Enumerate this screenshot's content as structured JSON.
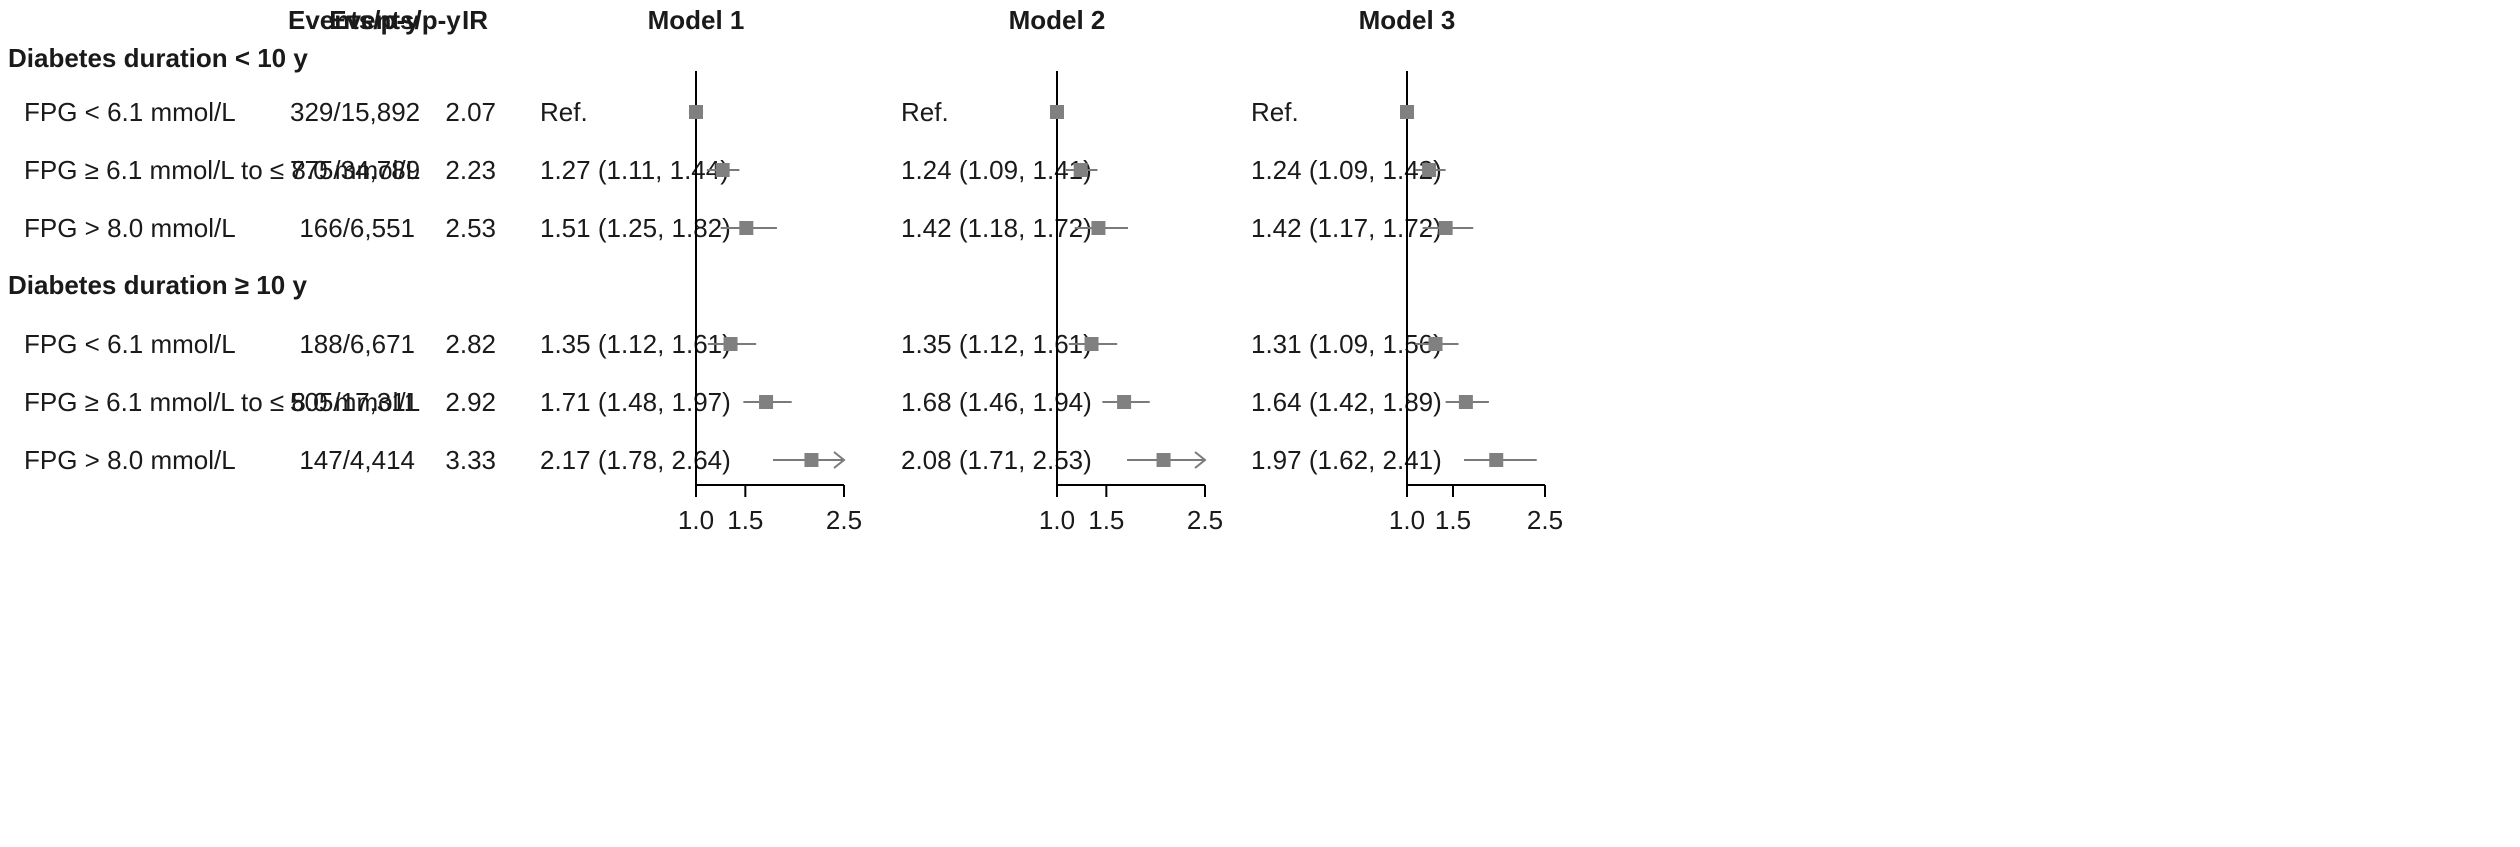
{
  "headers": {
    "events": "Events/p-y",
    "ir": "IR",
    "models": [
      "Model 1",
      "Model 2",
      "Model 3"
    ]
  },
  "groups": [
    {
      "title": "Diabetes duration < 10 y",
      "rows": [
        {
          "label": "FPG < 6.1 mmol/L",
          "events": "329/15,892",
          "ir": "2.07",
          "estimates": [
            "Ref.",
            "Ref.",
            "Ref."
          ]
        },
        {
          "label": "FPG ≥ 6.1 mmol/L to ≤ 8.0 mmol/L",
          "events": "775/34,789",
          "ir": "2.23",
          "estimates": [
            "1.27 (1.11, 1.44)",
            "1.24 (1.09, 1.41)",
            "1.24 (1.09, 1.42)"
          ]
        },
        {
          "label": "FPG > 8.0 mmol/L",
          "events": "166/6,551",
          "ir": "2.53",
          "estimates": [
            "1.51 (1.25, 1.82)",
            "1.42 (1.18, 1.72)",
            "1.42 (1.17, 1.72)"
          ]
        }
      ]
    },
    {
      "title": "Diabetes duration ≥ 10 y",
      "rows": [
        {
          "label": "FPG < 6.1 mmol/L",
          "events": "188/6,671",
          "ir": "2.82",
          "estimates": [
            "1.35 (1.12, 1.61)",
            "1.35 (1.12, 1.61)",
            "1.31 (1.09, 1.56)"
          ]
        },
        {
          "label": "FPG ≥ 6.1 mmol/L to ≤ 8.0 mmol/L",
          "events": "505/17,311",
          "ir": "2.92",
          "estimates": [
            "1.71 (1.48, 1.97)",
            "1.68 (1.46, 1.94)",
            "1.64 (1.42, 1.89)"
          ]
        },
        {
          "label": "FPG > 8.0 mmol/L",
          "events": "147/4,414",
          "ir": "3.33",
          "estimates": [
            "2.17 (1.78, 2.64)",
            "2.08 (1.71, 2.53)",
            "1.97 (1.62, 2.41)"
          ]
        }
      ]
    }
  ],
  "chart_data": {
    "type": "forest",
    "xlim": [
      1.0,
      2.5
    ],
    "xticks": [
      1.0,
      1.5,
      2.5
    ],
    "xtick_labels": [
      "1.0",
      "1.5",
      "2.5"
    ],
    "reference_line": 1.0,
    "marker_color": "#808080",
    "line_color": "#7a7a7a",
    "panels": [
      {
        "name": "Model 1",
        "points": [
          {
            "est": 1.0,
            "lo": 1.0,
            "hi": 1.0,
            "ref": true
          },
          {
            "est": 1.27,
            "lo": 1.11,
            "hi": 1.44
          },
          {
            "est": 1.51,
            "lo": 1.25,
            "hi": 1.82
          },
          {
            "est": 1.35,
            "lo": 1.12,
            "hi": 1.61
          },
          {
            "est": 1.71,
            "lo": 1.48,
            "hi": 1.97
          },
          {
            "est": 2.17,
            "lo": 1.78,
            "hi": 2.64,
            "arrow": true
          }
        ]
      },
      {
        "name": "Model 2",
        "points": [
          {
            "est": 1.0,
            "lo": 1.0,
            "hi": 1.0,
            "ref": true
          },
          {
            "est": 1.24,
            "lo": 1.09,
            "hi": 1.41
          },
          {
            "est": 1.42,
            "lo": 1.18,
            "hi": 1.72
          },
          {
            "est": 1.35,
            "lo": 1.12,
            "hi": 1.61
          },
          {
            "est": 1.68,
            "lo": 1.46,
            "hi": 1.94
          },
          {
            "est": 2.08,
            "lo": 1.71,
            "hi": 2.53,
            "arrow": true
          }
        ]
      },
      {
        "name": "Model 3",
        "points": [
          {
            "est": 1.0,
            "lo": 1.0,
            "hi": 1.0,
            "ref": true
          },
          {
            "est": 1.24,
            "lo": 1.09,
            "hi": 1.42
          },
          {
            "est": 1.42,
            "lo": 1.17,
            "hi": 1.72
          },
          {
            "est": 1.31,
            "lo": 1.09,
            "hi": 1.56
          },
          {
            "est": 1.64,
            "lo": 1.42,
            "hi": 1.89
          },
          {
            "est": 1.97,
            "lo": 1.62,
            "hi": 2.41
          }
        ]
      }
    ]
  }
}
